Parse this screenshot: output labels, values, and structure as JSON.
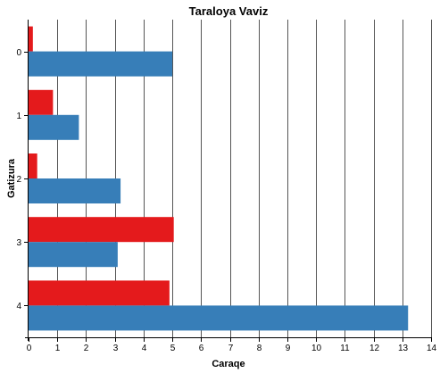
{
  "chart_data": {
    "type": "bar",
    "orientation": "horizontal",
    "title": "Taraloya Vaviz",
    "xlabel": "Caraqe",
    "ylabel": "Gatizura",
    "categories": [
      "0",
      "1",
      "2",
      "3",
      "4"
    ],
    "series": [
      {
        "color": "#e41a1c",
        "values": [
          0.15,
          0.85,
          0.3,
          5.05,
          4.9
        ]
      },
      {
        "color": "#377eb8",
        "values": [
          5.0,
          1.75,
          3.2,
          3.1,
          13.2
        ]
      }
    ],
    "xlim": [
      0,
      14
    ],
    "xticks": [
      "0",
      "1",
      "2",
      "3",
      "4",
      "5",
      "6",
      "7",
      "8",
      "9",
      "10",
      "11",
      "12",
      "13",
      "14"
    ],
    "grid": "vertical"
  }
}
